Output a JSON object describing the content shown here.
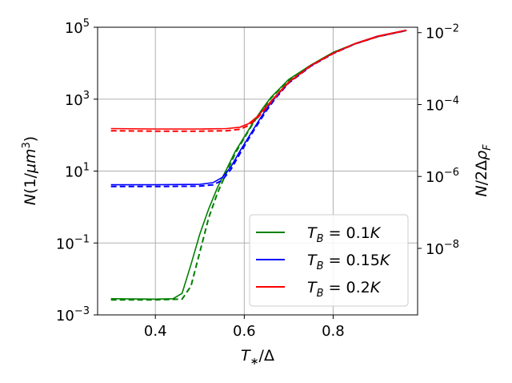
{
  "chart_data": {
    "type": "line",
    "xlabel": "T∗/Δ",
    "ylabel_left": "N(1/μm³)",
    "ylabel_right": "N/2ΔρF",
    "xlim": [
      0.27,
      0.99
    ],
    "ylim_left_log10": [
      -3,
      5
    ],
    "y_scale": "log",
    "grid": true,
    "legend_position": "lower-right",
    "x_ticks": [
      {
        "value": 0.4,
        "label": "0.4"
      },
      {
        "value": 0.6,
        "label": "0.6"
      },
      {
        "value": 0.8,
        "label": "0.8"
      }
    ],
    "y_ticks_left": [
      {
        "exp": -3,
        "label": "10",
        "sup": "−3"
      },
      {
        "exp": -1,
        "label": "10",
        "sup": "−1"
      },
      {
        "exp": 1,
        "label": "10",
        "sup": "1"
      },
      {
        "exp": 3,
        "label": "10",
        "sup": "3"
      },
      {
        "exp": 5,
        "label": "10",
        "sup": "5"
      }
    ],
    "y_ticks_right": [
      {
        "left_exp": 4.85,
        "label": "10",
        "sup": "−2"
      },
      {
        "left_exp": 2.85,
        "label": "10",
        "sup": "−4"
      },
      {
        "left_exp": 0.85,
        "label": "10",
        "sup": "−6"
      },
      {
        "left_exp": -1.15,
        "label": "10",
        "sup": "−8"
      }
    ],
    "series": [
      {
        "name": "TB = 0.1K",
        "legend_sub": "B",
        "legend_value": "0.1K",
        "color": "#008000",
        "solid": [
          [
            0.3,
            -2.55
          ],
          [
            0.4,
            -2.56
          ],
          [
            0.44,
            -2.55
          ],
          [
            0.46,
            -2.4
          ],
          [
            0.48,
            -1.6
          ],
          [
            0.5,
            -0.75
          ],
          [
            0.52,
            -0.05
          ],
          [
            0.54,
            0.55
          ],
          [
            0.56,
            1.05
          ],
          [
            0.58,
            1.55
          ],
          [
            0.6,
            1.95
          ],
          [
            0.62,
            2.35
          ],
          [
            0.64,
            2.72
          ],
          [
            0.66,
            3.05
          ],
          [
            0.7,
            3.55
          ],
          [
            0.75,
            3.95
          ],
          [
            0.8,
            4.3
          ],
          [
            0.85,
            4.55
          ],
          [
            0.9,
            4.75
          ],
          [
            0.965,
            4.92
          ]
        ],
        "dashed": [
          [
            0.3,
            -2.58
          ],
          [
            0.4,
            -2.58
          ],
          [
            0.46,
            -2.56
          ],
          [
            0.48,
            -2.2
          ],
          [
            0.5,
            -1.25
          ],
          [
            0.52,
            -0.3
          ],
          [
            0.54,
            0.4
          ],
          [
            0.56,
            0.95
          ],
          [
            0.58,
            1.5
          ],
          [
            0.6,
            1.92
          ],
          [
            0.62,
            2.33
          ],
          [
            0.64,
            2.7
          ],
          [
            0.66,
            3.03
          ],
          [
            0.7,
            3.53
          ],
          [
            0.75,
            3.94
          ],
          [
            0.8,
            4.29
          ],
          [
            0.85,
            4.54
          ],
          [
            0.9,
            4.74
          ],
          [
            0.965,
            4.91
          ]
        ]
      },
      {
        "name": "TB = 0.15K",
        "legend_sub": "B",
        "legend_value": "0.15K",
        "color": "#0000ff",
        "solid": [
          [
            0.3,
            0.62
          ],
          [
            0.4,
            0.62
          ],
          [
            0.5,
            0.63
          ],
          [
            0.53,
            0.68
          ],
          [
            0.55,
            0.82
          ],
          [
            0.57,
            1.12
          ],
          [
            0.59,
            1.55
          ],
          [
            0.61,
            1.95
          ],
          [
            0.63,
            2.35
          ],
          [
            0.65,
            2.73
          ],
          [
            0.67,
            3.05
          ],
          [
            0.7,
            3.47
          ],
          [
            0.75,
            3.93
          ],
          [
            0.8,
            4.28
          ],
          [
            0.85,
            4.55
          ],
          [
            0.9,
            4.75
          ],
          [
            0.965,
            4.92
          ]
        ],
        "dashed": [
          [
            0.3,
            0.57
          ],
          [
            0.4,
            0.57
          ],
          [
            0.5,
            0.58
          ],
          [
            0.53,
            0.62
          ],
          [
            0.55,
            0.74
          ],
          [
            0.57,
            1.05
          ],
          [
            0.59,
            1.48
          ],
          [
            0.61,
            1.9
          ],
          [
            0.63,
            2.3
          ],
          [
            0.65,
            2.68
          ],
          [
            0.67,
            3.02
          ],
          [
            0.7,
            3.45
          ],
          [
            0.75,
            3.92
          ],
          [
            0.8,
            4.27
          ],
          [
            0.85,
            4.54
          ],
          [
            0.9,
            4.74
          ],
          [
            0.965,
            4.91
          ]
        ]
      },
      {
        "name": "TB = 0.2K",
        "legend_sub": "B",
        "legend_value": "0.2K",
        "color": "#ff0000",
        "solid": [
          [
            0.3,
            2.18
          ],
          [
            0.4,
            2.17
          ],
          [
            0.5,
            2.17
          ],
          [
            0.56,
            2.18
          ],
          [
            0.59,
            2.22
          ],
          [
            0.61,
            2.32
          ],
          [
            0.63,
            2.52
          ],
          [
            0.65,
            2.8
          ],
          [
            0.67,
            3.08
          ],
          [
            0.7,
            3.48
          ],
          [
            0.75,
            3.94
          ],
          [
            0.8,
            4.28
          ],
          [
            0.85,
            4.55
          ],
          [
            0.9,
            4.75
          ],
          [
            0.965,
            4.92
          ]
        ],
        "dashed": [
          [
            0.3,
            2.12
          ],
          [
            0.4,
            2.11
          ],
          [
            0.5,
            2.11
          ],
          [
            0.56,
            2.12
          ],
          [
            0.59,
            2.16
          ],
          [
            0.61,
            2.27
          ],
          [
            0.63,
            2.48
          ],
          [
            0.65,
            2.77
          ],
          [
            0.67,
            3.06
          ],
          [
            0.7,
            3.46
          ],
          [
            0.75,
            3.93
          ],
          [
            0.8,
            4.27
          ],
          [
            0.85,
            4.54
          ],
          [
            0.9,
            4.74
          ],
          [
            0.965,
            4.91
          ]
        ]
      }
    ]
  }
}
